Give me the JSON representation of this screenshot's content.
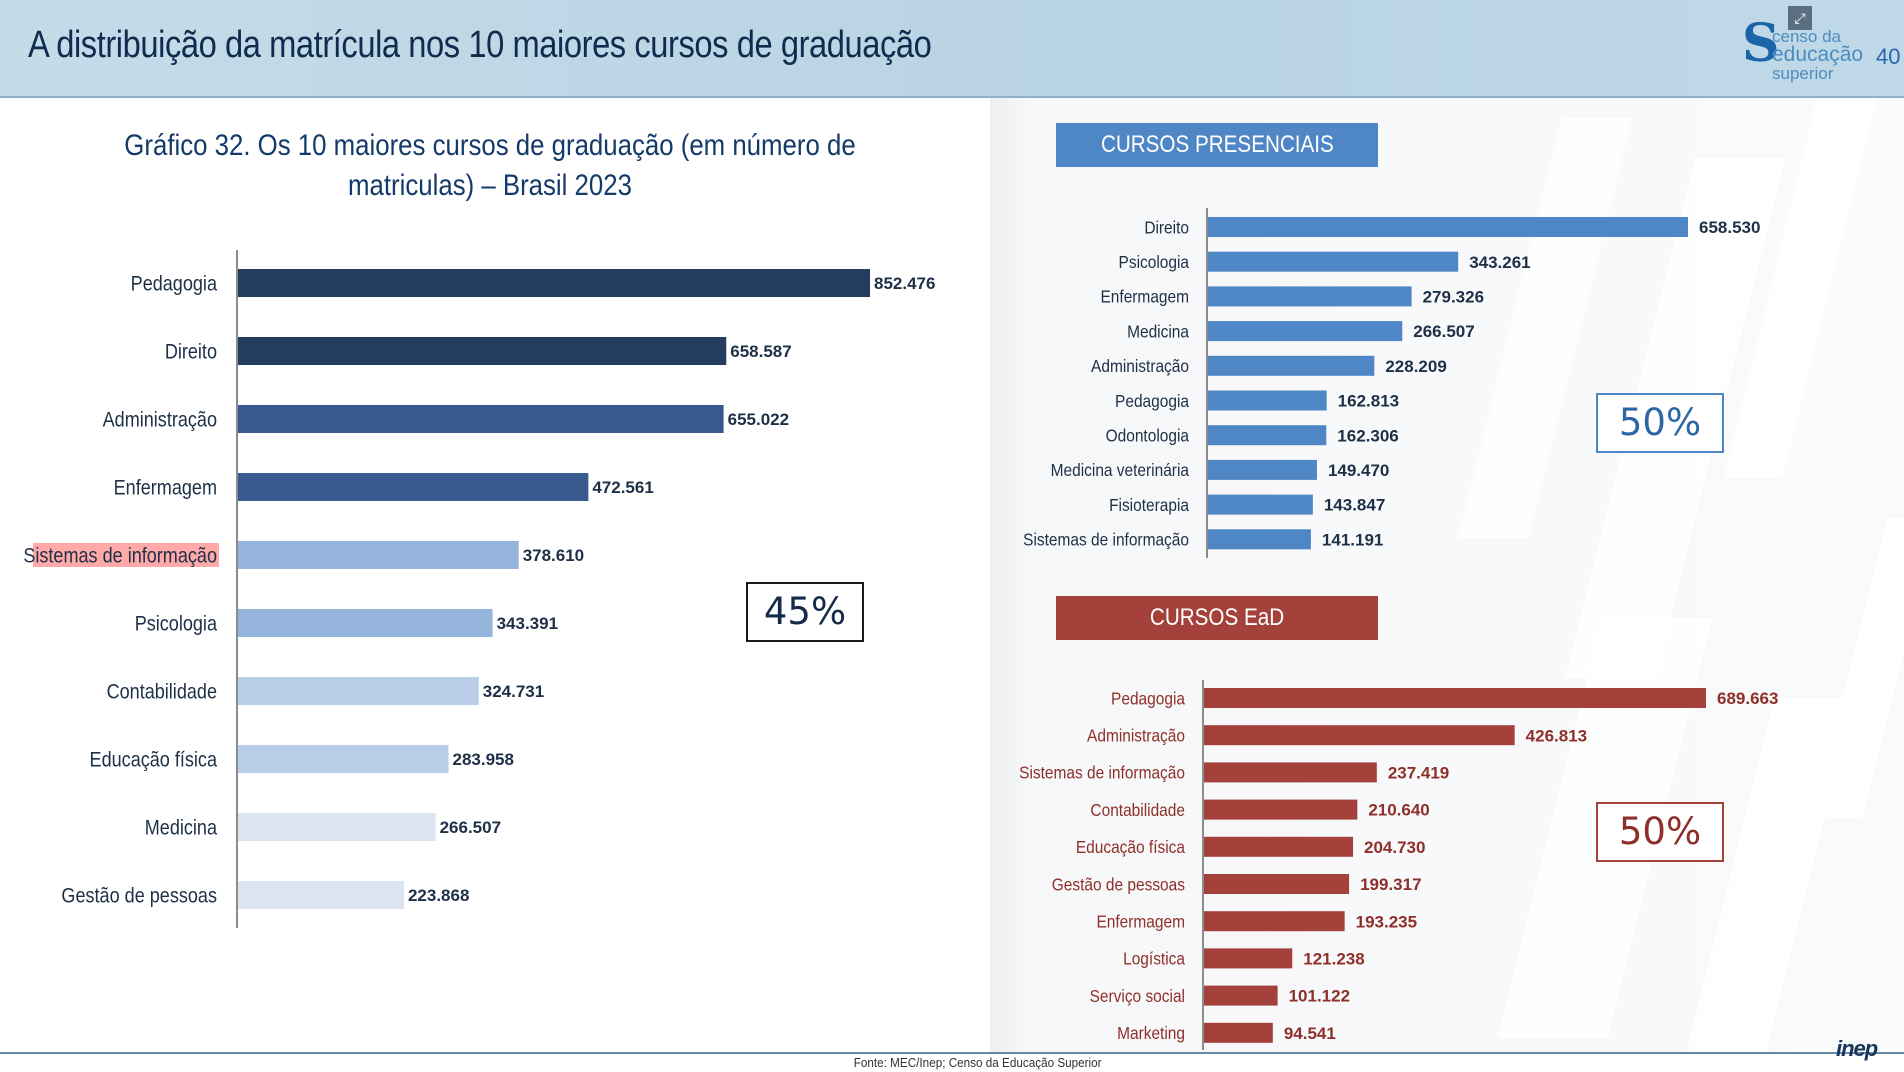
{
  "header": {
    "title": "A distribuição da matrícula nos 10 maiores cursos de graduação",
    "logo_lines": [
      "censo da",
      "educação",
      "superior"
    ],
    "page_number": "40",
    "expand_icon": "expand-icon"
  },
  "chart_data": [
    {
      "type": "bar",
      "orientation": "horizontal",
      "title": "Gráfico 32. Os 10 maiores cursos de graduação (em número de matriculas) – Brasil 2023",
      "categories": [
        "Pedagogia",
        "Direito",
        "Administração",
        "Enfermagem",
        "Sistemas de informação",
        "Psicologia",
        "Contabilidade",
        "Educação física",
        "Medicina",
        "Gestão de pessoas"
      ],
      "values": [
        852476,
        658587,
        655022,
        472561,
        378610,
        343391,
        324731,
        283958,
        266507,
        223868
      ],
      "data_labels": [
        "852.476",
        "658.587",
        "655.022",
        "472.561",
        "378.610",
        "343.391",
        "324.731",
        "283.958",
        "266.507",
        "223.868"
      ],
      "bar_colors": [
        "#243c5f",
        "#243c5f",
        "#375a8f",
        "#375a8f",
        "#95b4dc",
        "#95b4dc",
        "#b9cde8",
        "#b9cde8",
        "#dbe5f2",
        "#dbe5f2"
      ],
      "highlight_category": "Sistemas de informação",
      "highlight_color": "#ff8c8c",
      "share_label": "45%",
      "xlim": [
        0,
        852476
      ]
    },
    {
      "type": "bar",
      "orientation": "horizontal",
      "title": "CURSOS PRESENCIAIS",
      "categories": [
        "Direito",
        "Psicologia",
        "Enfermagem",
        "Medicina",
        "Administração",
        "Pedagogia",
        "Odontologia",
        "Medicina veterinária",
        "Fisioterapia",
        "Sistemas de informação"
      ],
      "values": [
        658530,
        343261,
        279326,
        266507,
        228209,
        162813,
        162306,
        149470,
        143847,
        141191
      ],
      "data_labels": [
        "658.530",
        "343.261",
        "279.326",
        "266.507",
        "228.209",
        "162.813",
        "162.306",
        "149.470",
        "143.847",
        "141.191"
      ],
      "bar_color": "#4f86c6",
      "label_color": "#1e3047",
      "share_label": "50%",
      "xlim": [
        0,
        658530
      ]
    },
    {
      "type": "bar",
      "orientation": "horizontal",
      "title": "CURSOS EaD",
      "categories": [
        "Pedagogia",
        "Administração",
        "Sistemas de informação",
        "Contabilidade",
        "Educação física",
        "Gestão de pessoas",
        "Enfermagem",
        "Logística",
        "Serviço social",
        "Marketing"
      ],
      "values": [
        689663,
        426813,
        237419,
        210640,
        204730,
        199317,
        193235,
        121238,
        101122,
        94541
      ],
      "data_labels": [
        "689.663",
        "426.813",
        "237.419",
        "210.640",
        "204.730",
        "199.317",
        "193.235",
        "121.238",
        "101.122",
        "94.541"
      ],
      "bar_color": "#a4413a",
      "label_color": "#8f2f29",
      "share_label": "50%",
      "xlim": [
        0,
        689663
      ]
    }
  ],
  "footer": {
    "source": "Fonte: MEC/Inep; Censo da Educação Superior",
    "brand": "inep"
  }
}
